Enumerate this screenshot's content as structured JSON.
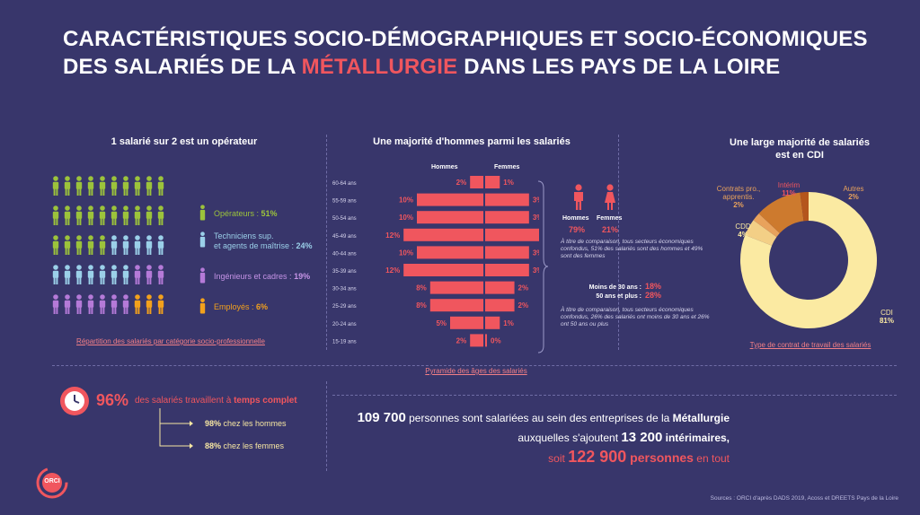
{
  "title": {
    "line1": "CARACTÉRISTIQUES SOCIO-DÉMOGRAPHIQUES ET SOCIO-ÉCONOMIQUES",
    "line2_a": "DES SALARIÉS DE LA ",
    "line2_hl": "MÉTALLURGIE",
    "line2_b": " DANS LES PAYS DE LA LOIRE"
  },
  "csp": {
    "title": "1 salarié sur 2 est un opérateur",
    "caption": "Répartition des salariés par catégorie socio-professionnelle",
    "legend": [
      {
        "label": "Opérateurs : ",
        "value": "51%",
        "color": "#9cc33b"
      },
      {
        "label": "Techniciens sup.",
        "label2": "et agents de maîtrise : ",
        "value": "24%",
        "color": "#9bd0e9"
      },
      {
        "label": "Ingénieurs et cadres : ",
        "value": "19%",
        "color": "#b57ad8"
      },
      {
        "label": "Employés : ",
        "value": "6%",
        "color": "#f3a11c"
      }
    ]
  },
  "pyramid": {
    "title": "Une majorité d'hommes parmi les salariés",
    "caption": "Pyramide des âges des salariés",
    "men_label": "Hommes",
    "women_label": "Femmes"
  },
  "gender_info": {
    "men_label": "Hommes",
    "women_label": "Femmes",
    "men_value": "79%",
    "women_value": "21%",
    "note1": "À titre de comparaison, tous secteurs économiques confondus, 51% des salariés sont des hommes et 49% sont des femmes",
    "under30_label": "Moins de 30 ans :",
    "under30_value": "18%",
    "over50_label": "50 ans et plus :",
    "over50_value": "28%",
    "note2": "À titre de comparaison, tous secteurs économiques confondus, 26% des salariés ont moins de 30 ans et 26% ont 50 ans ou plus"
  },
  "contract": {
    "title1": "Une large majorité de salariés",
    "title2": "est en CDI",
    "caption": "Type de contrat de travail des salariés",
    "labels": {
      "contrats": "Contrats pro., apprentis.",
      "contrats_val": "2%",
      "interim": "Intérim",
      "interim_val": "11%",
      "autres": "Autres",
      "autres_val": "2%",
      "cdd": "CDD",
      "cdd_val": "4%",
      "cdi": "CDI",
      "cdi_val": "81%"
    }
  },
  "fulltime": {
    "pct": "96%",
    "text_a": " des salariés travaillent à ",
    "text_b": "temps complet",
    "men_val": "98%",
    "men_text": " chez les hommes",
    "women_val": "88%",
    "women_text": " chez les femmes"
  },
  "summary": {
    "n1": "109 700",
    "t1": " personnes sont salariées au sein des entreprises de la ",
    "t1b": "Métallurgie",
    "t2": "auxquelles s'ajoutent ",
    "n2": "13 200",
    "t2b": " intérimaires,",
    "t3": "soit ",
    "n3": "122 900",
    "t3b": " personnes",
    "t3c": " en tout"
  },
  "logo_text": "ORCI",
  "sources": "Sources : ORCI d'après DADS 2019, Acoss et DREETS Pays de la Loire",
  "colors": {
    "accent": "#f0565e",
    "background": "#38366b",
    "cdi": "#fbeaa2",
    "interim": "#cd7a2e"
  },
  "chart_data": [
    {
      "type": "bar",
      "title": "Une majorité d'hommes parmi les salariés",
      "categories": [
        "60-64 ans",
        "55-59 ans",
        "50-54 ans",
        "45-49 ans",
        "40-44 ans",
        "35-39 ans",
        "30-34 ans",
        "25-29 ans",
        "20-24 ans",
        "15-19 ans"
      ],
      "series": [
        {
          "name": "Hommes",
          "values": [
            2,
            10,
            10,
            12,
            10,
            12,
            8,
            8,
            5,
            2
          ]
        },
        {
          "name": "Femmes",
          "values": [
            1,
            3,
            3,
            4,
            3,
            3,
            2,
            2,
            1,
            0
          ]
        }
      ]
    },
    {
      "type": "pie",
      "title": "Une large majorité de salariés est en CDI",
      "categories": [
        "CDI",
        "CDD",
        "Contrats pro., apprentis.",
        "Intérim",
        "Autres"
      ],
      "values": [
        81,
        4,
        2,
        11,
        2
      ]
    }
  ]
}
